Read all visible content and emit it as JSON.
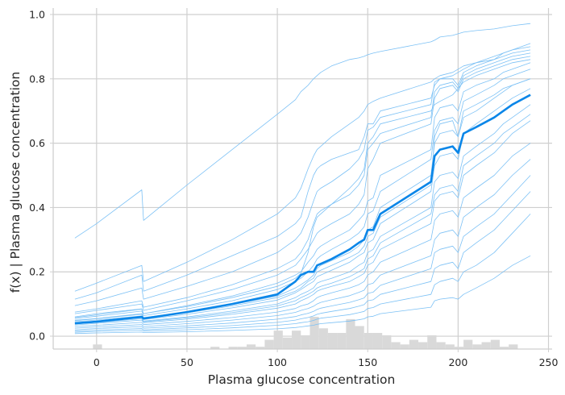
{
  "chart_data": {
    "type": "line",
    "title": "",
    "xlabel": "Plasma glucose concentration",
    "ylabel": "f(x) | Plasma glucose concentration",
    "xlim": [
      -24,
      252
    ],
    "ylim": [
      -0.04,
      1.02
    ],
    "xticks": [
      0,
      50,
      100,
      150,
      200,
      250
    ],
    "yticks": [
      0.0,
      0.2,
      0.4,
      0.6,
      0.8,
      1.0
    ],
    "xtick_labels": [
      "0",
      "50",
      "100",
      "150",
      "200",
      "250"
    ],
    "ytick_labels": [
      "0.0",
      "0.2",
      "0.4",
      "0.6",
      "0.8",
      "1.0"
    ],
    "grid": true,
    "legend": "none",
    "colors": {
      "individual": "#7cc1f5",
      "average": "#0a86e8",
      "histogram": "#d9d9d9",
      "grid": "#cfcfcf",
      "spine": "#cfcfcf"
    },
    "x": [
      -12,
      0,
      25,
      26,
      50,
      75,
      100,
      110,
      113,
      117,
      120,
      122,
      124,
      130,
      140,
      145,
      148,
      150,
      153,
      157,
      185,
      187,
      190,
      197,
      200,
      203,
      210,
      220,
      225,
      230,
      240
    ],
    "series": [
      {
        "role": "average",
        "values": [
          0.04,
          0.045,
          0.06,
          0.055,
          0.075,
          0.1,
          0.13,
          0.17,
          0.19,
          0.2,
          0.2,
          0.22,
          0.225,
          0.24,
          0.27,
          0.29,
          0.3,
          0.33,
          0.33,
          0.38,
          0.48,
          0.56,
          0.58,
          0.59,
          0.57,
          0.63,
          0.65,
          0.68,
          0.7,
          0.72,
          0.75
        ]
      },
      {
        "role": "individual",
        "values": [
          0.305,
          0.35,
          0.455,
          0.36,
          0.47,
          0.58,
          0.69,
          0.735,
          0.76,
          0.78,
          0.8,
          0.81,
          0.82,
          0.84,
          0.86,
          0.865,
          0.87,
          0.875,
          0.88,
          0.885,
          0.915,
          0.92,
          0.93,
          0.935,
          0.94,
          0.945,
          0.95,
          0.955,
          0.96,
          0.965,
          0.972
        ]
      },
      {
        "role": "individual",
        "values": [
          0.14,
          0.165,
          0.22,
          0.17,
          0.23,
          0.3,
          0.38,
          0.43,
          0.46,
          0.52,
          0.56,
          0.58,
          0.59,
          0.62,
          0.66,
          0.68,
          0.7,
          0.72,
          0.73,
          0.74,
          0.79,
          0.8,
          0.81,
          0.82,
          0.83,
          0.84,
          0.85,
          0.87,
          0.88,
          0.89,
          0.91
        ]
      },
      {
        "role": "individual",
        "values": [
          0.115,
          0.135,
          0.19,
          0.14,
          0.19,
          0.25,
          0.31,
          0.35,
          0.37,
          0.45,
          0.5,
          0.52,
          0.53,
          0.55,
          0.57,
          0.58,
          0.62,
          0.66,
          0.66,
          0.7,
          0.74,
          0.78,
          0.8,
          0.81,
          0.82,
          0.83,
          0.85,
          0.86,
          0.88,
          0.89,
          0.9
        ]
      },
      {
        "role": "individual",
        "values": [
          0.095,
          0.11,
          0.15,
          0.115,
          0.155,
          0.2,
          0.26,
          0.3,
          0.32,
          0.37,
          0.42,
          0.45,
          0.46,
          0.48,
          0.52,
          0.55,
          0.58,
          0.64,
          0.65,
          0.68,
          0.72,
          0.79,
          0.8,
          0.8,
          0.78,
          0.82,
          0.84,
          0.86,
          0.87,
          0.88,
          0.89
        ]
      },
      {
        "role": "individual",
        "values": [
          0.075,
          0.085,
          0.11,
          0.09,
          0.12,
          0.16,
          0.21,
          0.24,
          0.26,
          0.3,
          0.35,
          0.38,
          0.39,
          0.41,
          0.44,
          0.47,
          0.5,
          0.58,
          0.6,
          0.63,
          0.68,
          0.76,
          0.78,
          0.79,
          0.77,
          0.81,
          0.83,
          0.85,
          0.86,
          0.87,
          0.88
        ]
      },
      {
        "role": "individual",
        "values": [
          0.07,
          0.08,
          0.1,
          0.08,
          0.11,
          0.145,
          0.19,
          0.22,
          0.24,
          0.27,
          0.3,
          0.32,
          0.33,
          0.35,
          0.38,
          0.41,
          0.44,
          0.52,
          0.55,
          0.6,
          0.66,
          0.74,
          0.77,
          0.78,
          0.76,
          0.8,
          0.82,
          0.84,
          0.85,
          0.86,
          0.87
        ]
      },
      {
        "role": "individual",
        "values": [
          0.06,
          0.07,
          0.085,
          0.07,
          0.095,
          0.125,
          0.165,
          0.19,
          0.2,
          0.23,
          0.25,
          0.27,
          0.28,
          0.3,
          0.33,
          0.36,
          0.38,
          0.42,
          0.43,
          0.5,
          0.58,
          0.68,
          0.71,
          0.72,
          0.7,
          0.76,
          0.78,
          0.8,
          0.82,
          0.83,
          0.85
        ]
      },
      {
        "role": "individual",
        "values": [
          0.055,
          0.062,
          0.078,
          0.064,
          0.085,
          0.11,
          0.145,
          0.17,
          0.18,
          0.2,
          0.22,
          0.24,
          0.25,
          0.27,
          0.3,
          0.32,
          0.34,
          0.38,
          0.39,
          0.45,
          0.55,
          0.64,
          0.67,
          0.68,
          0.66,
          0.73,
          0.75,
          0.78,
          0.8,
          0.81,
          0.83
        ]
      },
      {
        "role": "individual",
        "values": [
          0.05,
          0.055,
          0.07,
          0.058,
          0.075,
          0.098,
          0.125,
          0.15,
          0.16,
          0.175,
          0.19,
          0.21,
          0.22,
          0.235,
          0.26,
          0.28,
          0.3,
          0.33,
          0.34,
          0.4,
          0.5,
          0.6,
          0.63,
          0.64,
          0.62,
          0.7,
          0.72,
          0.75,
          0.77,
          0.78,
          0.8
        ]
      },
      {
        "role": "individual",
        "values": [
          0.045,
          0.05,
          0.063,
          0.052,
          0.068,
          0.088,
          0.112,
          0.135,
          0.145,
          0.16,
          0.17,
          0.185,
          0.19,
          0.205,
          0.23,
          0.25,
          0.26,
          0.29,
          0.3,
          0.35,
          0.45,
          0.53,
          0.56,
          0.57,
          0.55,
          0.63,
          0.66,
          0.7,
          0.72,
          0.74,
          0.77
        ]
      },
      {
        "role": "individual",
        "values": [
          0.04,
          0.045,
          0.057,
          0.047,
          0.06,
          0.078,
          0.1,
          0.12,
          0.13,
          0.14,
          0.15,
          0.165,
          0.17,
          0.18,
          0.2,
          0.22,
          0.23,
          0.26,
          0.27,
          0.31,
          0.4,
          0.48,
          0.5,
          0.51,
          0.49,
          0.56,
          0.59,
          0.63,
          0.66,
          0.68,
          0.72
        ]
      },
      {
        "role": "individual",
        "values": [
          0.035,
          0.04,
          0.05,
          0.042,
          0.053,
          0.068,
          0.087,
          0.1,
          0.11,
          0.12,
          0.13,
          0.14,
          0.145,
          0.155,
          0.17,
          0.185,
          0.195,
          0.22,
          0.23,
          0.27,
          0.35,
          0.42,
          0.44,
          0.45,
          0.43,
          0.5,
          0.53,
          0.57,
          0.6,
          0.63,
          0.67
        ]
      },
      {
        "role": "individual",
        "values": [
          0.03,
          0.034,
          0.043,
          0.036,
          0.046,
          0.058,
          0.075,
          0.086,
          0.094,
          0.1,
          0.11,
          0.12,
          0.125,
          0.135,
          0.15,
          0.16,
          0.17,
          0.19,
          0.2,
          0.23,
          0.3,
          0.36,
          0.38,
          0.39,
          0.37,
          0.43,
          0.46,
          0.5,
          0.53,
          0.56,
          0.6
        ]
      },
      {
        "role": "individual",
        "values": [
          0.025,
          0.029,
          0.036,
          0.03,
          0.039,
          0.05,
          0.064,
          0.074,
          0.08,
          0.086,
          0.093,
          0.1,
          0.105,
          0.113,
          0.126,
          0.136,
          0.143,
          0.16,
          0.165,
          0.19,
          0.25,
          0.3,
          0.32,
          0.33,
          0.31,
          0.37,
          0.4,
          0.44,
          0.47,
          0.5,
          0.55
        ]
      },
      {
        "role": "individual",
        "values": [
          0.02,
          0.024,
          0.03,
          0.025,
          0.032,
          0.041,
          0.053,
          0.061,
          0.066,
          0.071,
          0.077,
          0.083,
          0.087,
          0.094,
          0.105,
          0.113,
          0.119,
          0.133,
          0.137,
          0.158,
          0.21,
          0.26,
          0.27,
          0.28,
          0.26,
          0.31,
          0.34,
          0.38,
          0.41,
          0.44,
          0.5
        ]
      },
      {
        "role": "individual",
        "values": [
          0.016,
          0.019,
          0.024,
          0.02,
          0.026,
          0.033,
          0.043,
          0.05,
          0.054,
          0.058,
          0.063,
          0.068,
          0.071,
          0.077,
          0.086,
          0.093,
          0.098,
          0.11,
          0.113,
          0.13,
          0.17,
          0.21,
          0.22,
          0.23,
          0.21,
          0.26,
          0.29,
          0.33,
          0.36,
          0.39,
          0.45
        ]
      },
      {
        "role": "individual",
        "values": [
          0.012,
          0.015,
          0.019,
          0.016,
          0.02,
          0.026,
          0.034,
          0.039,
          0.042,
          0.045,
          0.049,
          0.053,
          0.056,
          0.06,
          0.067,
          0.073,
          0.077,
          0.086,
          0.089,
          0.1,
          0.13,
          0.16,
          0.17,
          0.18,
          0.17,
          0.2,
          0.22,
          0.26,
          0.29,
          0.32,
          0.38
        ]
      },
      {
        "role": "individual",
        "values": [
          0.008,
          0.01,
          0.013,
          0.011,
          0.014,
          0.018,
          0.023,
          0.027,
          0.029,
          0.032,
          0.034,
          0.037,
          0.039,
          0.042,
          0.047,
          0.051,
          0.054,
          0.06,
          0.062,
          0.07,
          0.09,
          0.11,
          0.115,
          0.12,
          0.115,
          0.13,
          0.15,
          0.18,
          0.2,
          0.22,
          0.25
        ]
      },
      {
        "role": "individual",
        "values": [
          0.058,
          0.066,
          0.084,
          0.07,
          0.092,
          0.12,
          0.155,
          0.18,
          0.195,
          0.26,
          0.34,
          0.37,
          0.38,
          0.41,
          0.46,
          0.49,
          0.52,
          0.6,
          0.62,
          0.66,
          0.7,
          0.72,
          0.73,
          0.75,
          0.77,
          0.79,
          0.81,
          0.83,
          0.84,
          0.85,
          0.86
        ]
      },
      {
        "role": "individual",
        "values": [
          0.048,
          0.054,
          0.068,
          0.056,
          0.073,
          0.094,
          0.12,
          0.14,
          0.15,
          0.17,
          0.18,
          0.2,
          0.205,
          0.22,
          0.245,
          0.26,
          0.28,
          0.31,
          0.32,
          0.37,
          0.47,
          0.62,
          0.66,
          0.67,
          0.62,
          0.68,
          0.7,
          0.74,
          0.76,
          0.78,
          0.8
        ]
      },
      {
        "role": "individual",
        "values": [
          0.038,
          0.043,
          0.054,
          0.045,
          0.057,
          0.073,
          0.094,
          0.11,
          0.12,
          0.13,
          0.14,
          0.15,
          0.155,
          0.165,
          0.185,
          0.2,
          0.21,
          0.24,
          0.25,
          0.29,
          0.38,
          0.44,
          0.46,
          0.47,
          0.45,
          0.53,
          0.56,
          0.6,
          0.63,
          0.65,
          0.69
        ]
      }
    ],
    "histogram": {
      "bins": [
        {
          "x0": -2,
          "x1": 3,
          "count": 2
        },
        {
          "x0": 63,
          "x1": 68,
          "count": 1
        },
        {
          "x0": 73,
          "x1": 78,
          "count": 1
        },
        {
          "x0": 78,
          "x1": 83,
          "count": 1
        },
        {
          "x0": 83,
          "x1": 88,
          "count": 2
        },
        {
          "x0": 88,
          "x1": 93,
          "count": 1
        },
        {
          "x0": 93,
          "x1": 98,
          "count": 4
        },
        {
          "x0": 98,
          "x1": 103,
          "count": 8
        },
        {
          "x0": 103,
          "x1": 108,
          "count": 5
        },
        {
          "x0": 108,
          "x1": 113,
          "count": 8
        },
        {
          "x0": 113,
          "x1": 118,
          "count": 6
        },
        {
          "x0": 118,
          "x1": 123,
          "count": 14
        },
        {
          "x0": 123,
          "x1": 128,
          "count": 9
        },
        {
          "x0": 128,
          "x1": 133,
          "count": 7
        },
        {
          "x0": 133,
          "x1": 138,
          "count": 7
        },
        {
          "x0": 138,
          "x1": 143,
          "count": 13
        },
        {
          "x0": 143,
          "x1": 148,
          "count": 10
        },
        {
          "x0": 148,
          "x1": 153,
          "count": 7
        },
        {
          "x0": 153,
          "x1": 158,
          "count": 7
        },
        {
          "x0": 158,
          "x1": 163,
          "count": 6
        },
        {
          "x0": 163,
          "x1": 168,
          "count": 3
        },
        {
          "x0": 168,
          "x1": 173,
          "count": 2
        },
        {
          "x0": 173,
          "x1": 178,
          "count": 4
        },
        {
          "x0": 178,
          "x1": 183,
          "count": 3
        },
        {
          "x0": 183,
          "x1": 188,
          "count": 6
        },
        {
          "x0": 188,
          "x1": 193,
          "count": 3
        },
        {
          "x0": 193,
          "x1": 198,
          "count": 2
        },
        {
          "x0": 198,
          "x1": 203,
          "count": 1
        },
        {
          "x0": 203,
          "x1": 208,
          "count": 4
        },
        {
          "x0": 208,
          "x1": 213,
          "count": 2
        },
        {
          "x0": 213,
          "x1": 218,
          "count": 3
        },
        {
          "x0": 218,
          "x1": 223,
          "count": 4
        },
        {
          "x0": 223,
          "x1": 228,
          "count": 1
        },
        {
          "x0": 228,
          "x1": 233,
          "count": 2
        }
      ]
    }
  }
}
